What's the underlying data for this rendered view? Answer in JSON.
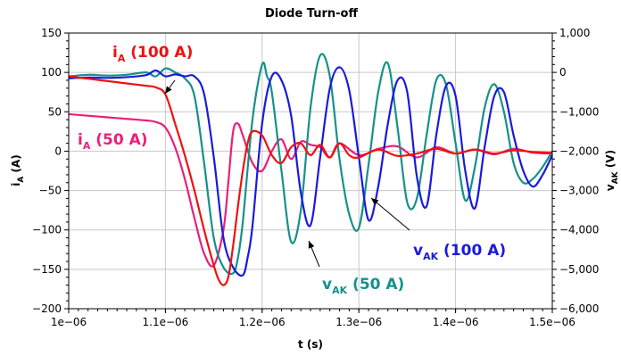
{
  "chart_data": {
    "type": "line",
    "title": "Diode Turn-off",
    "xlabel": "t (s)",
    "ylabel_left": {
      "main": "i",
      "sub": "A",
      "unit": " (A)"
    },
    "ylabel_right": {
      "main": "v",
      "sub": "AK",
      "unit": " (V)"
    },
    "grid": true,
    "xlim": [
      1e-06,
      1.5e-06
    ],
    "ylim_left": [
      -200,
      150
    ],
    "ylim_right": [
      -6000,
      1000
    ],
    "x_ticks": [
      1e-06,
      1.1e-06,
      1.2e-06,
      1.3e-06,
      1.4e-06,
      1.5e-06
    ],
    "x_tick_labels": [
      "1e−06",
      "1.1e−06",
      "1.2e−06",
      "1.3e−06",
      "1.4e−06",
      "1.5e−06"
    ],
    "y_left_ticks": [
      150,
      100,
      50,
      0,
      -50,
      -100,
      -150,
      -200
    ],
    "y_left_tick_labels": [
      "150",
      "100",
      "50",
      "0",
      "−50",
      "−100",
      "−150",
      "−200"
    ],
    "y_right_ticks": [
      1000,
      0,
      -1000,
      -2000,
      -3000,
      -4000,
      -5000,
      -6000
    ],
    "y_right_tick_labels": [
      "1,000",
      "0",
      "−1,000",
      "−2,000",
      "−3,000",
      "−4,000",
      "−5,000",
      "−6,000"
    ],
    "colors": {
      "iA_100": "#ee1111",
      "iA_50": "#e8207a",
      "vAK_100": "#1a1adc",
      "vAK_50": "#15918a"
    },
    "series": [
      {
        "key": "iA_100",
        "axis": "left",
        "x": [
          1e-06,
          1.02e-06,
          1.04e-06,
          1.06e-06,
          1.08e-06,
          1.09e-06,
          1.1e-06,
          1.11e-06,
          1.12e-06,
          1.13e-06,
          1.14e-06,
          1.15e-06,
          1.155e-06,
          1.16e-06,
          1.165e-06,
          1.17e-06,
          1.175e-06,
          1.18e-06,
          1.185e-06,
          1.19e-06,
          1.2e-06,
          1.21e-06,
          1.22e-06,
          1.23e-06,
          1.24e-06,
          1.25e-06,
          1.26e-06,
          1.27e-06,
          1.28e-06,
          1.29e-06,
          1.3e-06,
          1.32e-06,
          1.34e-06,
          1.36e-06,
          1.38e-06,
          1.4e-06,
          1.42e-06,
          1.44e-06,
          1.46e-06,
          1.48e-06,
          1.5e-06
        ],
        "y": [
          95,
          92,
          89,
          86,
          83,
          81,
          72,
          35,
          -5,
          -50,
          -100,
          -145,
          -163,
          -170,
          -160,
          -120,
          -70,
          -25,
          10,
          25,
          20,
          -5,
          -15,
          5,
          10,
          -5,
          8,
          -8,
          10,
          -5,
          -8,
          2,
          -6,
          -3,
          3,
          -3,
          2,
          -3,
          1,
          -1,
          -2
        ]
      },
      {
        "key": "iA_50",
        "axis": "left",
        "x": [
          1e-06,
          1.02e-06,
          1.04e-06,
          1.06e-06,
          1.08e-06,
          1.09e-06,
          1.1e-06,
          1.11e-06,
          1.12e-06,
          1.13e-06,
          1.14e-06,
          1.15e-06,
          1.16e-06,
          1.165e-06,
          1.17e-06,
          1.175e-06,
          1.18e-06,
          1.19e-06,
          1.2e-06,
          1.21e-06,
          1.22e-06,
          1.23e-06,
          1.24e-06,
          1.25e-06,
          1.26e-06,
          1.27e-06,
          1.28e-06,
          1.3e-06,
          1.32e-06,
          1.34e-06,
          1.36e-06,
          1.38e-06,
          1.4e-06,
          1.42e-06,
          1.44e-06,
          1.46e-06,
          1.48e-06,
          1.5e-06
        ],
        "y": [
          47,
          45,
          43,
          41,
          39,
          37,
          30,
          5,
          -35,
          -85,
          -130,
          -145,
          -100,
          -40,
          25,
          35,
          20,
          -15,
          -25,
          0,
          15,
          -10,
          12,
          8,
          5,
          -8,
          10,
          -5,
          3,
          6,
          -8,
          5,
          -3,
          2,
          -4,
          3,
          -2,
          -3
        ]
      },
      {
        "key": "vAK_100",
        "axis": "right",
        "x": [
          1e-06,
          1.02e-06,
          1.04e-06,
          1.06e-06,
          1.08e-06,
          1.09e-06,
          1.1e-06,
          1.11e-06,
          1.12e-06,
          1.13e-06,
          1.14e-06,
          1.15e-06,
          1.16e-06,
          1.17e-06,
          1.18e-06,
          1.185e-06,
          1.19e-06,
          1.2e-06,
          1.21e-06,
          1.22e-06,
          1.23e-06,
          1.24e-06,
          1.25e-06,
          1.26e-06,
          1.27e-06,
          1.28e-06,
          1.29e-06,
          1.3e-06,
          1.31e-06,
          1.32e-06,
          1.33e-06,
          1.34e-06,
          1.35e-06,
          1.36e-06,
          1.37e-06,
          1.38e-06,
          1.39e-06,
          1.4e-06,
          1.41e-06,
          1.42e-06,
          1.43e-06,
          1.44e-06,
          1.45e-06,
          1.46e-06,
          1.47e-06,
          1.48e-06,
          1.49e-06,
          1.5e-06
        ],
        "y": [
          -150,
          -130,
          -140,
          -120,
          -70,
          50,
          -100,
          -50,
          -100,
          -100,
          -550,
          -2150,
          -4200,
          -4950,
          -5150,
          -4700,
          -3900,
          -1300,
          -100,
          -200,
          -1100,
          -3050,
          -3880,
          -2150,
          -400,
          130,
          -450,
          -2150,
          -3750,
          -2900,
          -1300,
          -200,
          -500,
          -2650,
          -3400,
          -1600,
          -350,
          -600,
          -2500,
          -3450,
          -1900,
          -600,
          -500,
          -1600,
          -2500,
          -2900,
          -2600,
          -2100
        ]
      },
      {
        "key": "vAK_50",
        "axis": "right",
        "x": [
          1e-06,
          1.02e-06,
          1.04e-06,
          1.06e-06,
          1.08e-06,
          1.09e-06,
          1.1e-06,
          1.11e-06,
          1.12e-06,
          1.13e-06,
          1.14e-06,
          1.15e-06,
          1.16e-06,
          1.17e-06,
          1.175e-06,
          1.18e-06,
          1.19e-06,
          1.2e-06,
          1.205e-06,
          1.21e-06,
          1.22e-06,
          1.23e-06,
          1.24e-06,
          1.25e-06,
          1.26e-06,
          1.27e-06,
          1.28e-06,
          1.29e-06,
          1.3e-06,
          1.31e-06,
          1.32e-06,
          1.33e-06,
          1.34e-06,
          1.35e-06,
          1.36e-06,
          1.37e-06,
          1.38e-06,
          1.39e-06,
          1.4e-06,
          1.41e-06,
          1.42e-06,
          1.43e-06,
          1.44e-06,
          1.45e-06,
          1.46e-06,
          1.47e-06,
          1.48e-06,
          1.49e-06,
          1.5e-06
        ],
        "y": [
          -100,
          -60,
          -80,
          -60,
          0,
          -100,
          100,
          0,
          -150,
          -600,
          -2300,
          -4200,
          -4950,
          -5100,
          -4700,
          -3800,
          -1200,
          200,
          -100,
          -500,
          -2500,
          -4300,
          -3500,
          -900,
          430,
          -100,
          -2200,
          -3600,
          -3950,
          -2350,
          -500,
          230,
          -1400,
          -3300,
          -3200,
          -1600,
          -200,
          -300,
          -1800,
          -3250,
          -2400,
          -900,
          -300,
          -1000,
          -2300,
          -2800,
          -2700,
          -2400,
          -2000
        ]
      }
    ],
    "annotations": [
      {
        "key": "iA_100",
        "main": "i",
        "sub": "A",
        "rest": " (100 A)"
      },
      {
        "key": "iA_50",
        "main": "i",
        "sub": "A",
        "rest": " (50 A)"
      },
      {
        "key": "vAK_100",
        "main": "v",
        "sub": "AK",
        "rest": " (100 A)"
      },
      {
        "key": "vAK_50",
        "main": "v",
        "sub": "AK",
        "rest": " (50 A)"
      }
    ]
  }
}
